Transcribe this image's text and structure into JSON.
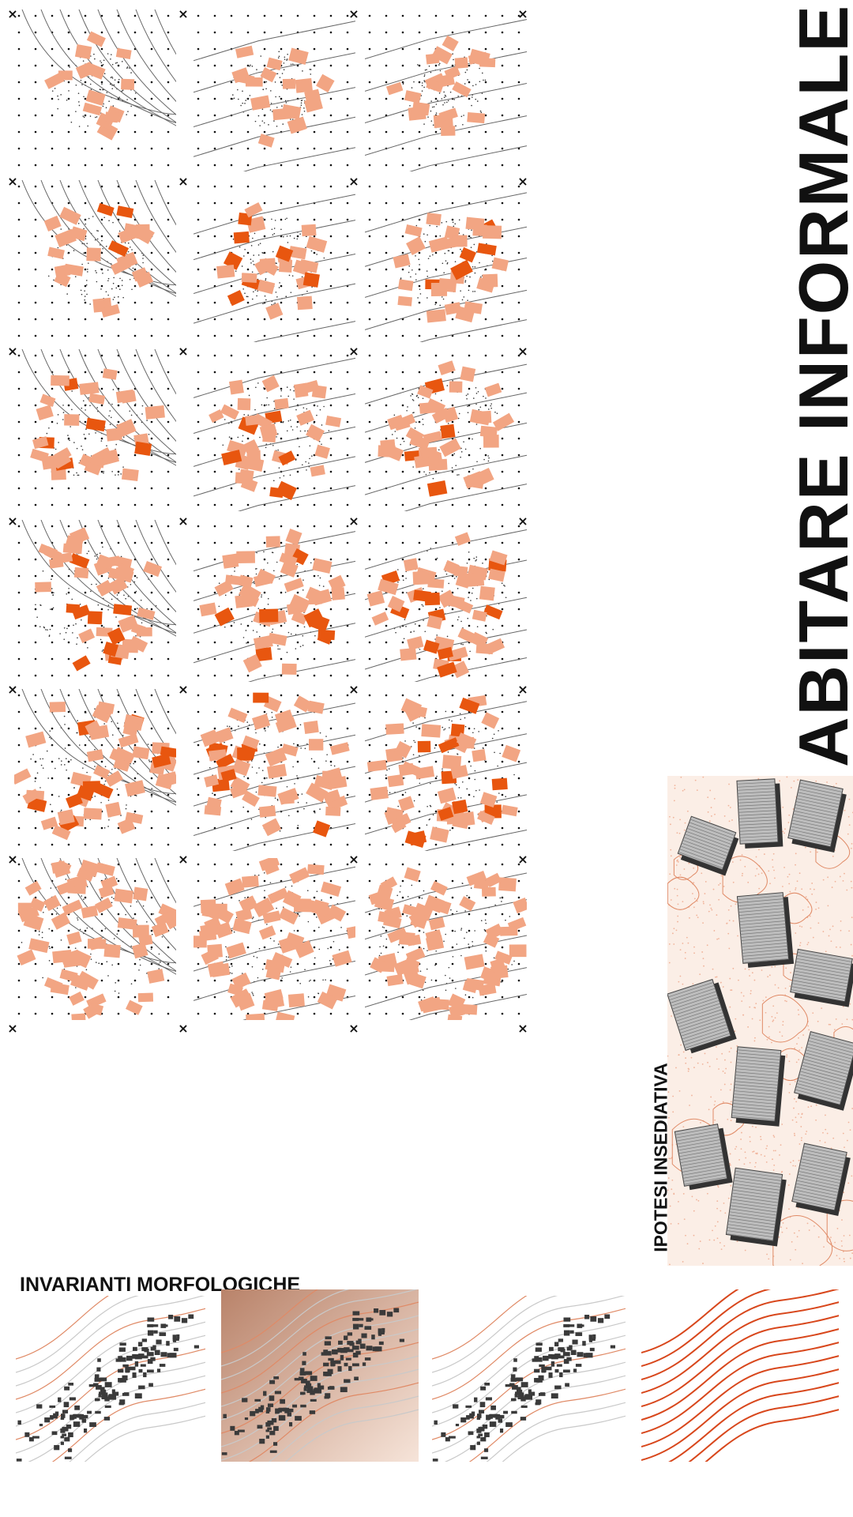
{
  "title": "ABITARE INFORMALE",
  "subtitle_vertical": "IPOTESI INSEDIATIVA",
  "subtitle_horizontal": "INVARIANTI MORFOLOGICHE",
  "corner_marker": "×",
  "colors": {
    "light_block": "#f2a583",
    "dark_block": "#e8560f",
    "contour": "#666666",
    "ink": "#111111",
    "terrain": "#c98a6c",
    "contour_red": "#d8471c"
  },
  "grid": {
    "rows": 6,
    "columns": 3,
    "panel_count": 18
  }
}
